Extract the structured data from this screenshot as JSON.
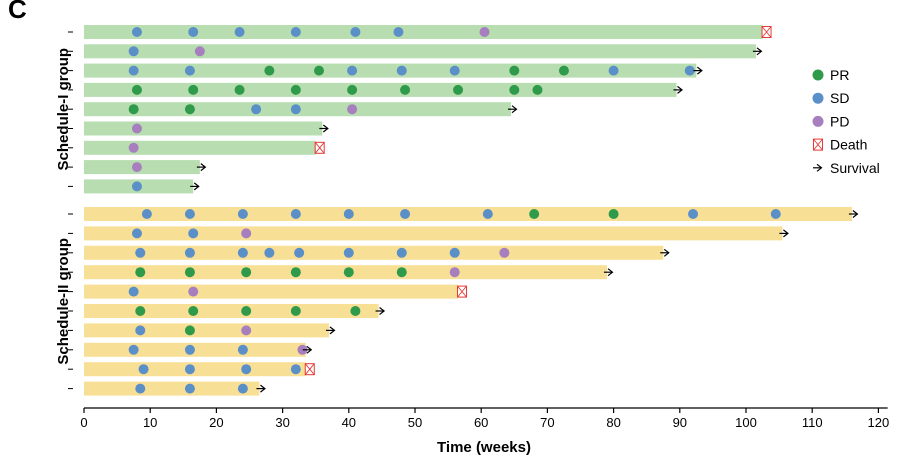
{
  "panel_label": "C",
  "chart_data": {
    "type": "swimmer",
    "xlabel": "Time (weeks)",
    "xlim": [
      0,
      122
    ],
    "xticks": [
      0,
      10,
      20,
      30,
      40,
      50,
      60,
      70,
      80,
      90,
      100,
      110,
      120
    ],
    "colors": {
      "PR": "#2e9a4a",
      "SD": "#5b8fc7",
      "PD": "#a77fbf",
      "Death": "#e53935",
      "Survival": "#000000",
      "group1_bar": "#b7ddb0",
      "group2_bar": "#f8df96"
    },
    "legend": [
      {
        "key": "PR",
        "label": "PR",
        "marker": "circle"
      },
      {
        "key": "SD",
        "label": "SD",
        "marker": "circle"
      },
      {
        "key": "PD",
        "label": "PD",
        "marker": "circle"
      },
      {
        "key": "Death",
        "label": "Death",
        "marker": "death-box"
      },
      {
        "key": "Survival",
        "label": "Survival",
        "marker": "arrow"
      }
    ],
    "legend_position": "right",
    "groups": [
      {
        "name": "Schedule-I group",
        "color_key": "group1_bar",
        "patients": [
          {
            "end": 102.5,
            "outcome": "Death",
            "events": [
              {
                "t": 8,
                "r": "SD"
              },
              {
                "t": 16.5,
                "r": "SD"
              },
              {
                "t": 23.5,
                "r": "SD"
              },
              {
                "t": 32,
                "r": "SD"
              },
              {
                "t": 41,
                "r": "SD"
              },
              {
                "t": 47.5,
                "r": "SD"
              },
              {
                "t": 60.5,
                "r": "PD"
              }
            ]
          },
          {
            "end": 101.5,
            "outcome": "Survival",
            "events": [
              {
                "t": 7.5,
                "r": "SD"
              },
              {
                "t": 17.5,
                "r": "PD"
              }
            ]
          },
          {
            "end": 92.5,
            "outcome": "Survival",
            "events": [
              {
                "t": 7.5,
                "r": "SD"
              },
              {
                "t": 16,
                "r": "SD"
              },
              {
                "t": 28,
                "r": "PR"
              },
              {
                "t": 35.5,
                "r": "PR"
              },
              {
                "t": 40.5,
                "r": "SD"
              },
              {
                "t": 48,
                "r": "SD"
              },
              {
                "t": 56,
                "r": "SD"
              },
              {
                "t": 65,
                "r": "PR"
              },
              {
                "t": 72.5,
                "r": "PR"
              },
              {
                "t": 80,
                "r": "SD"
              },
              {
                "t": 91.5,
                "r": "SD"
              }
            ]
          },
          {
            "end": 89.5,
            "outcome": "Survival",
            "events": [
              {
                "t": 8,
                "r": "PR"
              },
              {
                "t": 16.5,
                "r": "PR"
              },
              {
                "t": 23.5,
                "r": "PR"
              },
              {
                "t": 32,
                "r": "PR"
              },
              {
                "t": 40.5,
                "r": "PR"
              },
              {
                "t": 48.5,
                "r": "PR"
              },
              {
                "t": 56.5,
                "r": "PR"
              },
              {
                "t": 65,
                "r": "PR"
              },
              {
                "t": 68.5,
                "r": "PR"
              }
            ]
          },
          {
            "end": 64.5,
            "outcome": "Survival",
            "events": [
              {
                "t": 7.5,
                "r": "PR"
              },
              {
                "t": 16,
                "r": "PR"
              },
              {
                "t": 26,
                "r": "SD"
              },
              {
                "t": 32,
                "r": "SD"
              },
              {
                "t": 40.5,
                "r": "PD"
              }
            ]
          },
          {
            "end": 36,
            "outcome": "Survival",
            "events": [
              {
                "t": 8,
                "r": "PD"
              }
            ]
          },
          {
            "end": 35,
            "outcome": "Death",
            "events": [
              {
                "t": 7.5,
                "r": "PD"
              }
            ]
          },
          {
            "end": 17.5,
            "outcome": "Survival",
            "events": [
              {
                "t": 8,
                "r": "PD"
              }
            ]
          },
          {
            "end": 16.5,
            "outcome": "Survival",
            "events": [
              {
                "t": 8,
                "r": "SD"
              }
            ]
          }
        ]
      },
      {
        "name": "Schedule-II group",
        "color_key": "group2_bar",
        "patients": [
          {
            "end": 116,
            "outcome": "Survival",
            "events": [
              {
                "t": 9.5,
                "r": "SD"
              },
              {
                "t": 16,
                "r": "SD"
              },
              {
                "t": 24,
                "r": "SD"
              },
              {
                "t": 32,
                "r": "SD"
              },
              {
                "t": 40,
                "r": "SD"
              },
              {
                "t": 48.5,
                "r": "SD"
              },
              {
                "t": 61,
                "r": "SD"
              },
              {
                "t": 68,
                "r": "PR"
              },
              {
                "t": 80,
                "r": "PR"
              },
              {
                "t": 92,
                "r": "SD"
              },
              {
                "t": 104.5,
                "r": "SD"
              }
            ]
          },
          {
            "end": 105.5,
            "outcome": "Survival",
            "events": [
              {
                "t": 8,
                "r": "SD"
              },
              {
                "t": 16.5,
                "r": "SD"
              },
              {
                "t": 24.5,
                "r": "PD"
              }
            ]
          },
          {
            "end": 87.5,
            "outcome": "Survival",
            "events": [
              {
                "t": 8.5,
                "r": "SD"
              },
              {
                "t": 16,
                "r": "SD"
              },
              {
                "t": 24,
                "r": "SD"
              },
              {
                "t": 28,
                "r": "SD"
              },
              {
                "t": 32.5,
                "r": "SD"
              },
              {
                "t": 40,
                "r": "SD"
              },
              {
                "t": 48,
                "r": "SD"
              },
              {
                "t": 56,
                "r": "SD"
              },
              {
                "t": 63.5,
                "r": "PD"
              }
            ]
          },
          {
            "end": 79,
            "outcome": "Survival",
            "events": [
              {
                "t": 8.5,
                "r": "PR"
              },
              {
                "t": 16,
                "r": "PR"
              },
              {
                "t": 24.5,
                "r": "PR"
              },
              {
                "t": 32,
                "r": "PR"
              },
              {
                "t": 40,
                "r": "PR"
              },
              {
                "t": 48,
                "r": "PR"
              },
              {
                "t": 56,
                "r": "PD"
              }
            ]
          },
          {
            "end": 56.5,
            "outcome": "Death",
            "events": [
              {
                "t": 7.5,
                "r": "SD"
              },
              {
                "t": 16.5,
                "r": "PD"
              }
            ]
          },
          {
            "end": 44.5,
            "outcome": "Survival",
            "events": [
              {
                "t": 8.5,
                "r": "PR"
              },
              {
                "t": 16.5,
                "r": "PR"
              },
              {
                "t": 24.5,
                "r": "PR"
              },
              {
                "t": 32,
                "r": "PR"
              },
              {
                "t": 41,
                "r": "PR"
              }
            ]
          },
          {
            "end": 37,
            "outcome": "Survival",
            "events": [
              {
                "t": 8.5,
                "r": "SD"
              },
              {
                "t": 16,
                "r": "PR"
              },
              {
                "t": 24.5,
                "r": "PD"
              }
            ]
          },
          {
            "end": 33.5,
            "outcome": "Survival",
            "events": [
              {
                "t": 7.5,
                "r": "SD"
              },
              {
                "t": 16,
                "r": "SD"
              },
              {
                "t": 24,
                "r": "SD"
              },
              {
                "t": 33,
                "r": "PD"
              }
            ]
          },
          {
            "end": 33.5,
            "outcome": "Death",
            "events": [
              {
                "t": 9,
                "r": "SD"
              },
              {
                "t": 16,
                "r": "SD"
              },
              {
                "t": 24.5,
                "r": "SD"
              },
              {
                "t": 32,
                "r": "SD"
              }
            ]
          },
          {
            "end": 26.5,
            "outcome": "Survival",
            "events": [
              {
                "t": 8.5,
                "r": "SD"
              },
              {
                "t": 16,
                "r": "SD"
              },
              {
                "t": 24,
                "r": "SD"
              }
            ]
          }
        ]
      }
    ]
  }
}
